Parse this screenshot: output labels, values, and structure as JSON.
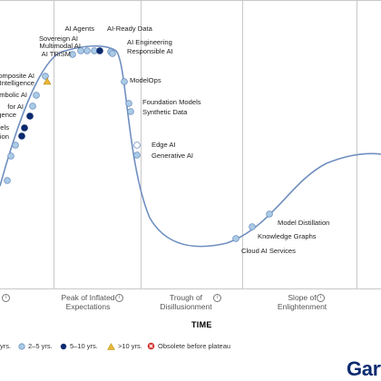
{
  "colors": {
    "curve": "#6f8fc0",
    "frame": "#c8c8c8",
    "dot_2_5": "#a9cbe6",
    "dot_5_10": "#0b2a6f",
    "dot_less2": "#ffffff",
    "triangle": "#e9b832",
    "obsolete": "#d0312d",
    "brand": "#0b2a6f"
  },
  "axis": {
    "x_title": "TIME"
  },
  "phases": [
    {
      "label": "Peak of Inflated\nExpectations",
      "info": "i"
    },
    {
      "label": "Trough of\nDisillusionment",
      "info": "i"
    },
    {
      "label": "Slope of\nEnlightenment",
      "info": "i"
    },
    {
      "label": "",
      "info": "i"
    }
  ],
  "technologies": [
    {
      "label": "AI Agents",
      "type": "2-5"
    },
    {
      "label": "AI-Ready Data",
      "type": "5-10"
    },
    {
      "label": "Sovereign AI",
      "type": "2-5"
    },
    {
      "label": "Multimodal AI",
      "type": "2-5"
    },
    {
      "label": "AI TRiSM",
      "type": "2-5"
    },
    {
      "label": "AI Engineering",
      "type": "2-5"
    },
    {
      "label": "Responsible AI",
      "type": "2-5"
    },
    {
      "label": "omposite AI",
      "type": "2-5"
    },
    {
      "label": "Intelligence",
      "type": "triangle"
    },
    {
      "label": "ModelOps",
      "type": "2-5"
    },
    {
      "label": "mbolic AI",
      "type": "2-5"
    },
    {
      "label": "for AI",
      "type": "2-5"
    },
    {
      "label": "igence",
      "type": "5-10"
    },
    {
      "label": "Foundation Models",
      "type": "2-5"
    },
    {
      "label": "Synthetic Data",
      "type": "2-5"
    },
    {
      "label": "els",
      "type": "5-10"
    },
    {
      "label": "tion",
      "type": "5-10"
    },
    {
      "label": "Edge AI",
      "type": "less2"
    },
    {
      "label": "Generative AI",
      "type": "2-5"
    },
    {
      "label": "",
      "type": "2-5"
    },
    {
      "label": "",
      "type": "2-5"
    },
    {
      "label": "",
      "type": "2-5"
    },
    {
      "label": "Model Distillation",
      "type": "2-5"
    },
    {
      "label": "Knowledge Graphs",
      "type": "2-5"
    },
    {
      "label": "Cloud AI Services",
      "type": "2-5"
    }
  ],
  "legend": [
    {
      "label": "yrs.",
      "marker": "none"
    },
    {
      "label": "2–5 yrs.",
      "marker": "2-5"
    },
    {
      "label": "5–10 yrs.",
      "marker": "5-10"
    },
    {
      "label": ">10 yrs.",
      "marker": "triangle"
    },
    {
      "label": "Obsolete before plateau",
      "marker": "obsolete"
    }
  ],
  "brand_text": "Gart"
}
